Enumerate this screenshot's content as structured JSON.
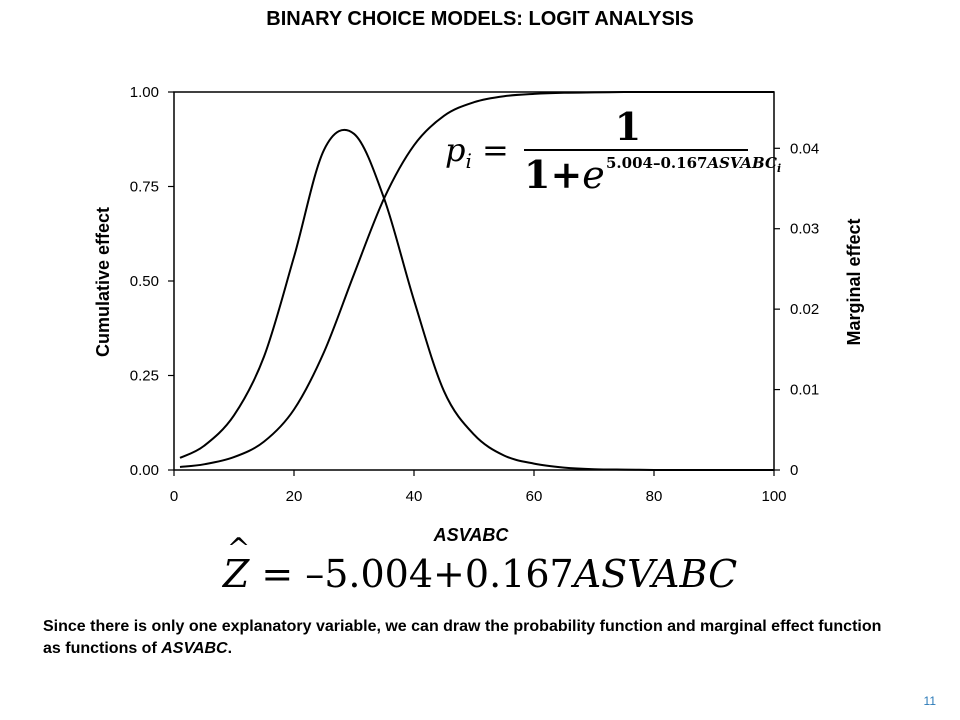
{
  "slide": {
    "title": "BINARY CHOICE MODELS: LOGIT ANALYSIS",
    "model_equation": {
      "lhs": "Z",
      "equals": "=",
      "intercept": "–5.004",
      "plus": "+",
      "coef": "0.167",
      "var": "ASVABC"
    },
    "plot_equation": {
      "lhs": "p",
      "lhs_sub": "i",
      "equals": "=",
      "numerator": "1",
      "denominator_prefix": "1+",
      "base": "e",
      "exponent": "5.004–0.167",
      "exponent_var": "ASVABC",
      "exponent_sub": "i"
    },
    "caption_part1": "Since there is only one explanatory variable, we can draw the probability function and marginal effect function as functions of",
    "caption_var": "ASVABC",
    "caption_end": ".",
    "page_number": "11"
  },
  "chart_data": {
    "type": "line",
    "title": "",
    "xlabel": "ASVABC",
    "ylabel_left": "Cumulative effect",
    "ylabel_right": "Marginal effect",
    "xlim": [
      0,
      100
    ],
    "ylim_left": [
      0,
      1
    ],
    "ylim_right": [
      0,
      0.047
    ],
    "x_ticks": [
      "0",
      "20",
      "40",
      "60",
      "80",
      "100"
    ],
    "y_ticks_left": [
      "0.00",
      "0.25",
      "0.50",
      "0.75",
      "1.00"
    ],
    "y_ticks_right": [
      "0",
      "0.01",
      "0.02",
      "0.03",
      "0.04"
    ],
    "grid": false,
    "x": [
      1,
      5,
      10,
      15,
      20,
      25,
      30,
      35,
      40,
      45,
      50,
      55,
      60,
      65,
      70,
      75,
      80,
      85,
      90,
      95,
      100
    ],
    "series": [
      {
        "name": "",
        "axis": "left",
        "values": [
          0.008,
          0.015,
          0.034,
          0.075,
          0.16,
          0.312,
          0.518,
          0.718,
          0.859,
          0.937,
          0.973,
          0.989,
          0.995,
          0.998,
          0.999,
          1.0,
          1.0,
          1.0,
          1.0,
          1.0,
          1.0
        ]
      },
      {
        "name": "",
        "axis": "right",
        "values": [
          0.0015,
          0.003,
          0.0068,
          0.0141,
          0.0265,
          0.0398,
          0.0418,
          0.0338,
          0.0211,
          0.0098,
          0.0044,
          0.0018,
          0.0008,
          0.0003,
          0.0001,
          5e-05,
          0.0,
          0.0,
          0.0,
          0.0,
          0.0
        ]
      }
    ]
  }
}
